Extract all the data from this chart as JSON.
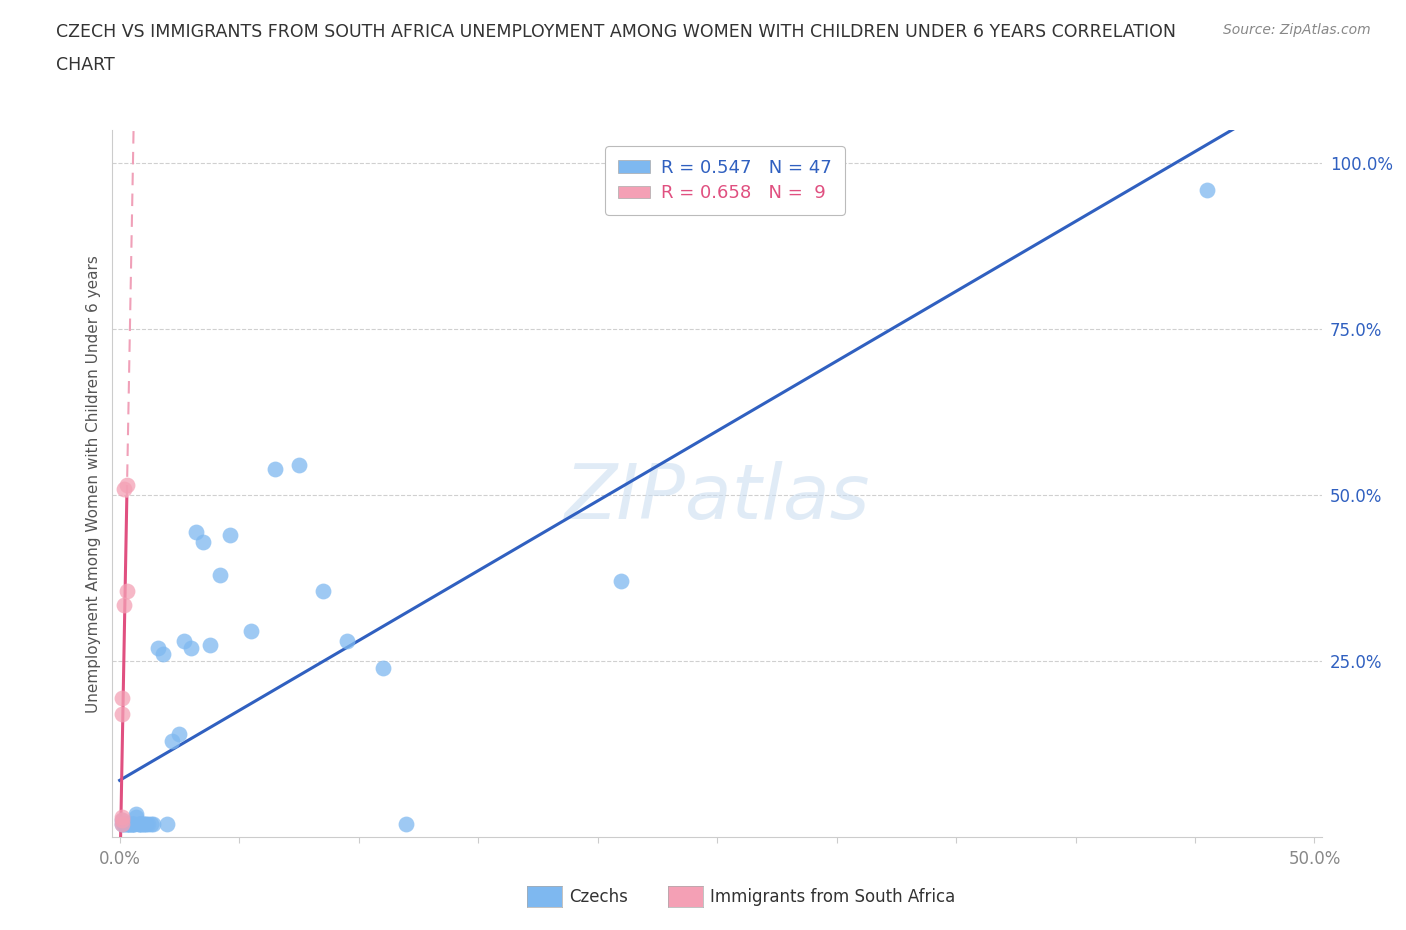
{
  "title_line1": "CZECH VS IMMIGRANTS FROM SOUTH AFRICA UNEMPLOYMENT AMONG WOMEN WITH CHILDREN UNDER 6 YEARS CORRELATION",
  "title_line2": "CHART",
  "source": "Source: ZipAtlas.com",
  "ylabel": "Unemployment Among Women with Children Under 6 years",
  "watermark": "ZIPatlas",
  "xlim": [
    -0.003,
    0.503
  ],
  "ylim": [
    -0.015,
    1.05
  ],
  "ytick_vals": [
    0.25,
    0.5,
    0.75,
    1.0
  ],
  "ytick_labels": [
    "25.0%",
    "50.0%",
    "75.0%",
    "100.0%"
  ],
  "xtick_vals": [
    0.0,
    0.05,
    0.1,
    0.15,
    0.2,
    0.25,
    0.3,
    0.35,
    0.4,
    0.45,
    0.5
  ],
  "xtick_labels": [
    "0.0%",
    "",
    "",
    "",
    "",
    "",
    "",
    "",
    "",
    "",
    "50.0%"
  ],
  "legend_r1": "R = 0.547   N = 47",
  "legend_r2": "R = 0.658   N =  9",
  "legend_c1": "#7EB8F0",
  "legend_c2": "#F4A0B5",
  "czechs_x": [
    0.001,
    0.001,
    0.002,
    0.002,
    0.003,
    0.003,
    0.004,
    0.004,
    0.004,
    0.005,
    0.005,
    0.005,
    0.006,
    0.006,
    0.007,
    0.007,
    0.008,
    0.008,
    0.009,
    0.009,
    0.01,
    0.01,
    0.011,
    0.012,
    0.013,
    0.014,
    0.016,
    0.018,
    0.02,
    0.022,
    0.025,
    0.027,
    0.03,
    0.032,
    0.035,
    0.038,
    0.042,
    0.046,
    0.055,
    0.065,
    0.075,
    0.085,
    0.095,
    0.11,
    0.12,
    0.21,
    0.455
  ],
  "czechs_y": [
    0.005,
    0.01,
    0.005,
    0.005,
    0.005,
    0.005,
    0.005,
    0.005,
    0.005,
    0.005,
    0.005,
    0.005,
    0.005,
    0.005,
    0.015,
    0.02,
    0.005,
    0.005,
    0.005,
    0.005,
    0.005,
    0.005,
    0.005,
    0.005,
    0.005,
    0.005,
    0.27,
    0.26,
    0.005,
    0.13,
    0.14,
    0.28,
    0.27,
    0.445,
    0.43,
    0.275,
    0.38,
    0.44,
    0.295,
    0.54,
    0.545,
    0.355,
    0.28,
    0.24,
    0.005,
    0.37,
    0.96
  ],
  "sa_x": [
    0.001,
    0.001,
    0.001,
    0.001,
    0.001,
    0.002,
    0.002,
    0.003,
    0.003
  ],
  "sa_y": [
    0.005,
    0.01,
    0.015,
    0.17,
    0.195,
    0.335,
    0.51,
    0.355,
    0.515
  ],
  "czech_dot_color": "#7EB8F0",
  "sa_dot_color": "#F4A0B5",
  "czech_line_color": "#3060C0",
  "sa_line_color": "#E05080",
  "sa_dash_color": "#F0A0B8",
  "background_color": "#FFFFFF",
  "grid_color": "#D0D0D0",
  "title_color": "#333333",
  "ylabel_color": "#555555",
  "tick_right_color": "#3060C0",
  "tick_bottom_color": "#888888",
  "bottom_legend_labels": [
    "Czechs",
    "Immigrants from South Africa"
  ]
}
